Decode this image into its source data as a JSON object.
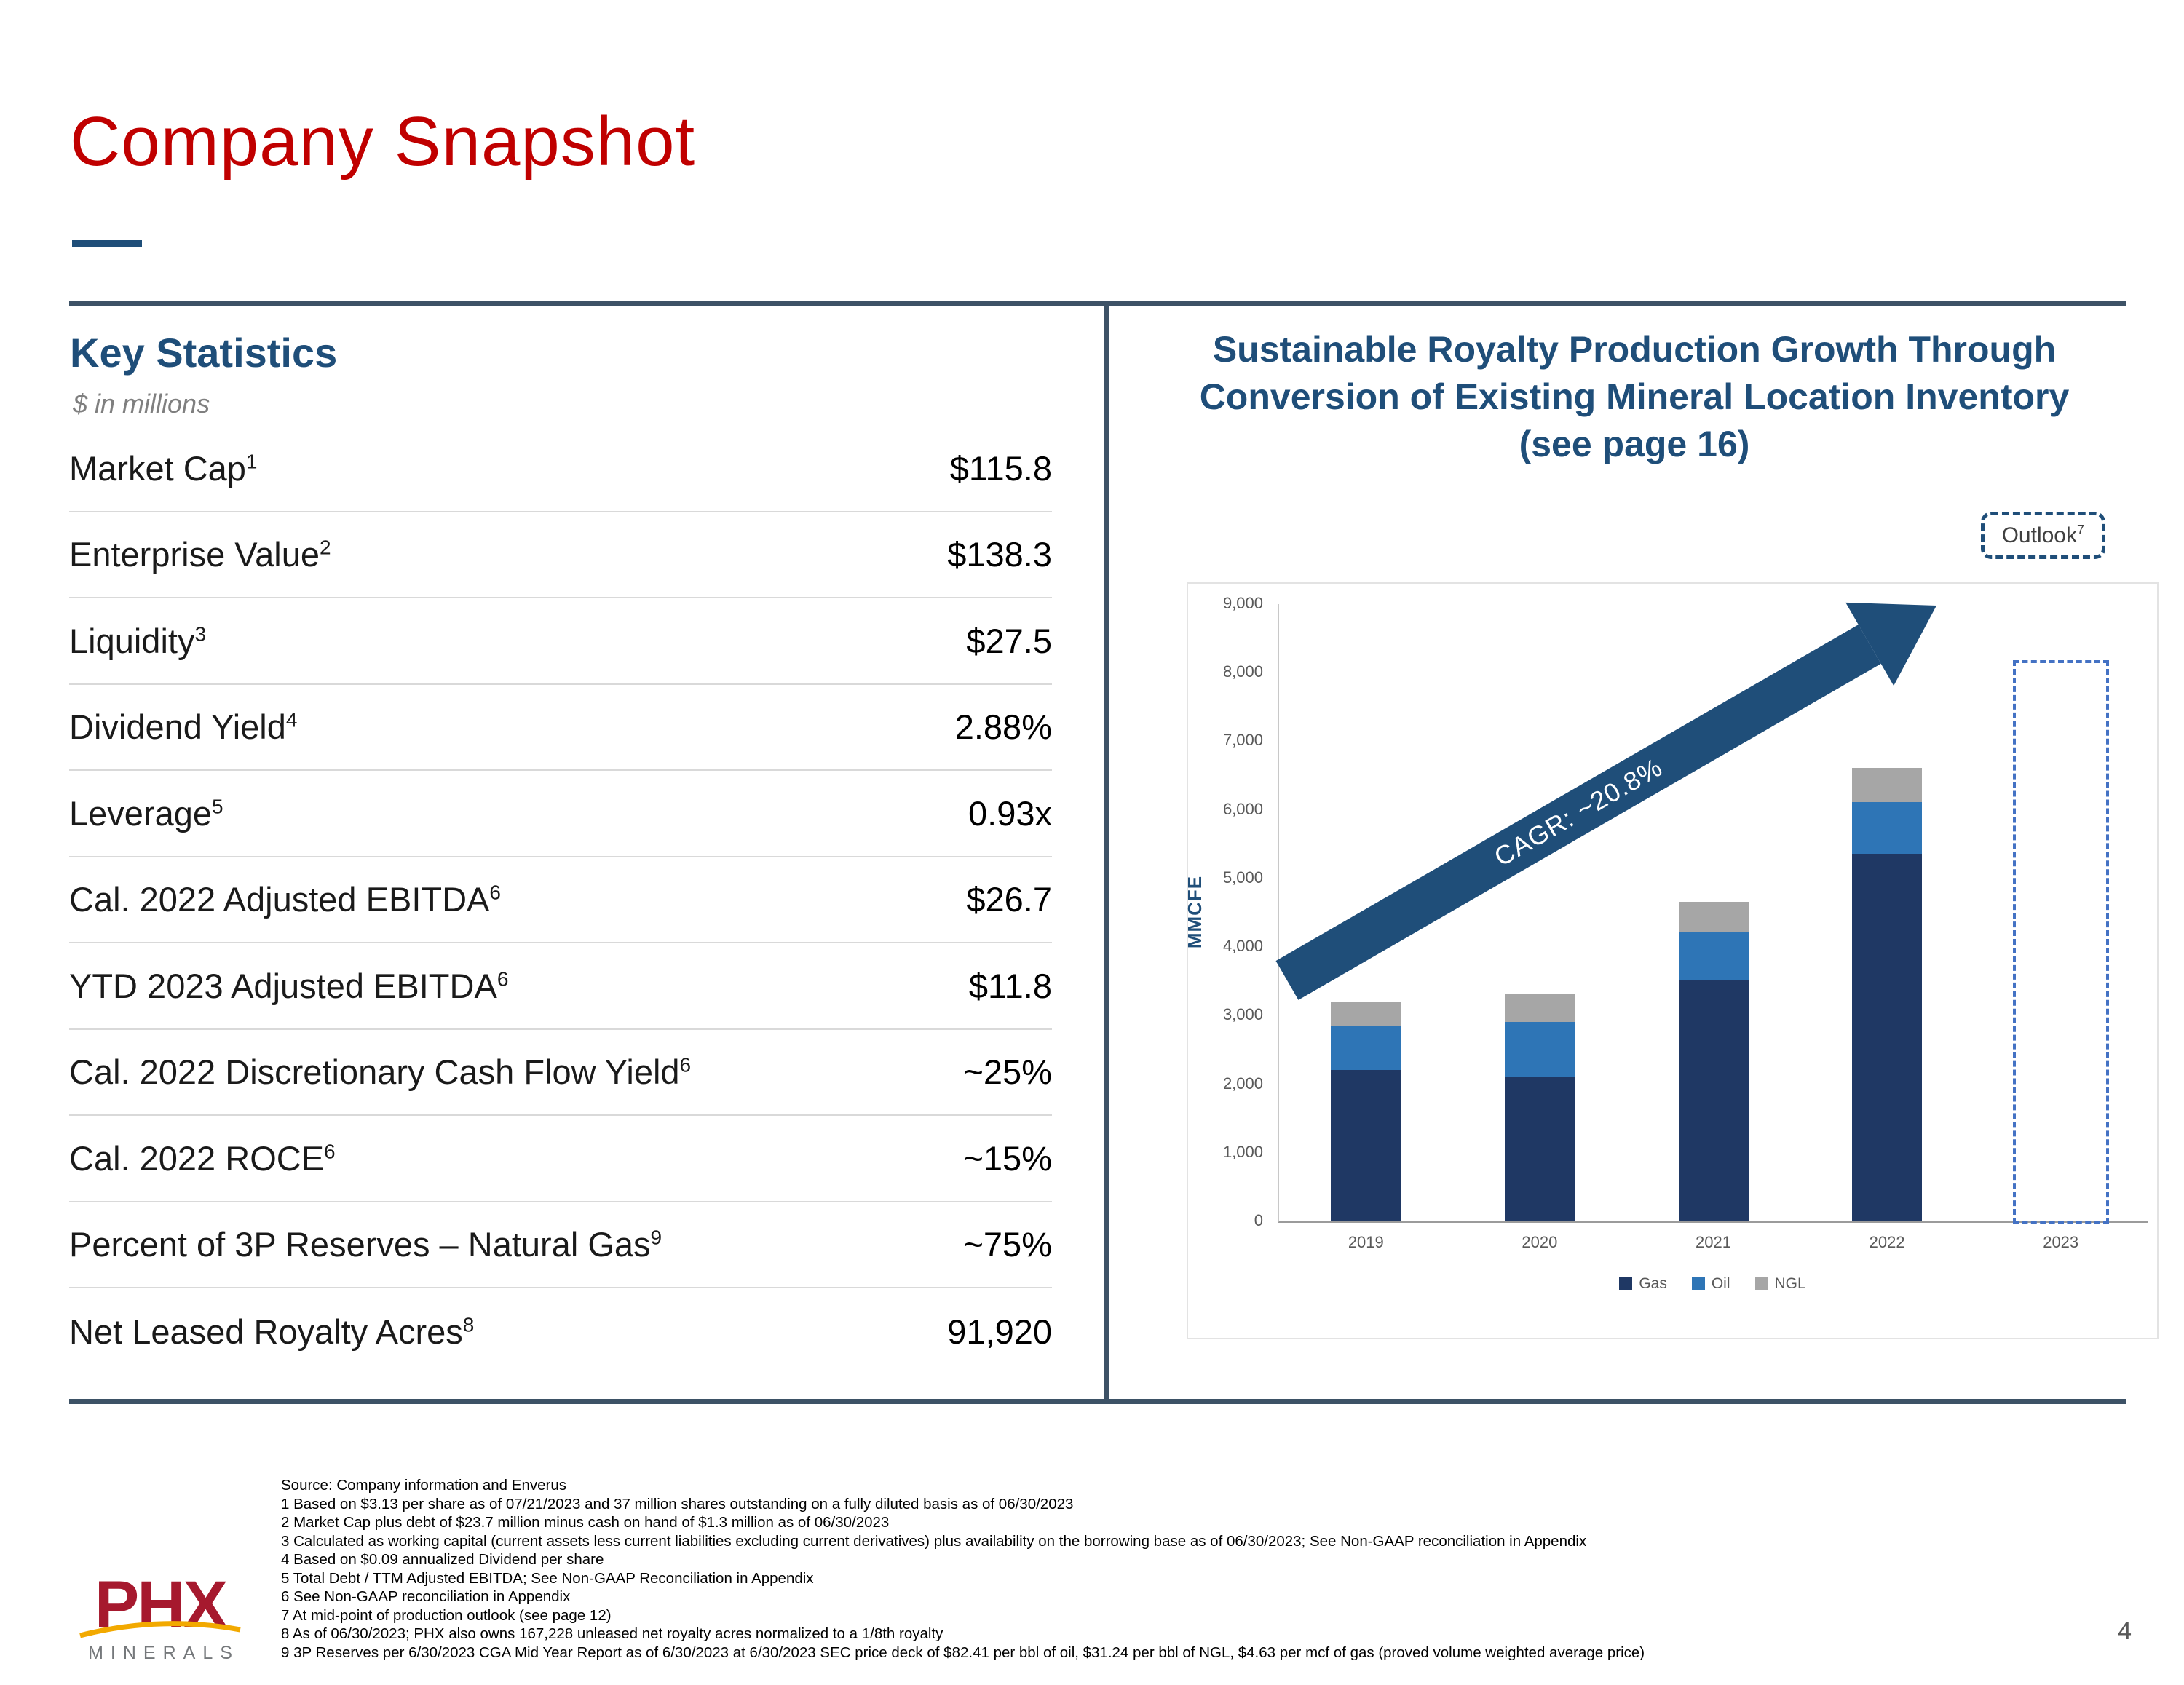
{
  "page": {
    "title": "Company Snapshot",
    "page_number": "4"
  },
  "key_statistics": {
    "heading": "Key Statistics",
    "units_note": "$ in millions",
    "rows": [
      {
        "label": "Market Cap",
        "sup": "1",
        "value": "$115.8"
      },
      {
        "label": "Enterprise Value",
        "sup": "2",
        "value": "$138.3"
      },
      {
        "label": "Liquidity",
        "sup": "3",
        "value": "$27.5"
      },
      {
        "label": "Dividend Yield",
        "sup": "4",
        "value": "2.88%"
      },
      {
        "label": "Leverage",
        "sup": "5",
        "value": "0.93x"
      },
      {
        "label": "Cal. 2022 Adjusted EBITDA",
        "sup": "6",
        "value": "$26.7"
      },
      {
        "label": "YTD 2023 Adjusted EBITDA",
        "sup": "6",
        "value": "$11.8"
      },
      {
        "label": "Cal. 2022 Discretionary Cash Flow Yield",
        "sup": "6",
        "value": "~25%"
      },
      {
        "label": "Cal. 2022 ROCE",
        "sup": "6",
        "value": "~15%"
      },
      {
        "label": "Percent of 3P Reserves – Natural Gas",
        "sup": "9",
        "value": "~75%"
      },
      {
        "label": "Net Leased Royalty Acres",
        "sup": "8",
        "value": "91,920"
      }
    ]
  },
  "chart": {
    "heading_line1": "Sustainable Royalty Production Growth Through",
    "heading_line2": "Conversion of Existing Mineral Location Inventory",
    "heading_line3": "(see page 16)",
    "outlook_label": "Outlook",
    "outlook_sup": "7",
    "cagr_label": "CAGR: ~20.8%"
  },
  "chart_data": {
    "type": "bar",
    "stacked": true,
    "title": "Sustainable Royalty Production Growth Through Conversion of Existing Mineral Location Inventory (see page 16)",
    "ylabel": "MMCFE",
    "ylim": [
      0,
      9000
    ],
    "yticks": [
      0,
      1000,
      2000,
      3000,
      4000,
      5000,
      6000,
      7000,
      8000,
      9000
    ],
    "categories": [
      "2019",
      "2020",
      "2021",
      "2022",
      "2023"
    ],
    "series": [
      {
        "name": "Gas",
        "color": "#1F3864",
        "values": [
          2200,
          2100,
          3500,
          5350,
          null
        ]
      },
      {
        "name": "Oil",
        "color": "#2E75B6",
        "values": [
          650,
          800,
          700,
          750,
          null
        ]
      },
      {
        "name": "NGL",
        "color": "#A6A6A6",
        "values": [
          350,
          400,
          450,
          500,
          null
        ]
      }
    ],
    "outlook": {
      "category": "2023",
      "total": 8200,
      "border_color": "#4472C4"
    },
    "annotation": "CAGR: ~20.8%",
    "legend_position": "bottom",
    "gridlines": false
  },
  "footnotes": {
    "lines": [
      "Source: Company information and Enverus",
      "1 Based on $3.13 per share as of 07/21/2023 and 37 million shares outstanding on a fully diluted basis  as of 06/30/2023",
      "2 Market Cap plus debt of $23.7 million minus cash on hand of $1.3 million as of 06/30/2023",
      "3 Calculated as working capital (current assets less current liabilities excluding current derivatives) plus availability on the borrowing base as of 06/30/2023;  See Non-GAAP reconciliation in Appendix",
      "4 Based on $0.09 annualized Dividend per share",
      "5 Total Debt / TTM Adjusted EBITDA; See Non-GAAP Reconciliation in Appendix",
      "6 See Non-GAAP reconciliation in Appendix",
      "7 At mid-point of production outlook (see page 12)",
      "8 As of 06/30/2023; PHX also owns 167,228 unleased net royalty acres normalized to a 1/8th royalty",
      "9 3P Reserves per 6/30/2023 CGA  Mid Year Report as of 6/30/2023 at 6/30/2023 SEC price deck of $82.41 per bbl of oil, $31.24 per bbl of NGL, $4.63 per mcf of gas (proved volume weighted average price)"
    ]
  },
  "logo": {
    "name": "PHX",
    "subtext": "MINERALS"
  },
  "colors": {
    "title_red": "#C00000",
    "heading_blue": "#1F4E79",
    "divider": "#3D5266",
    "arrow": "#1F4E79",
    "swoosh_orange": "#F2A900",
    "logo_red": "#A6192E"
  }
}
